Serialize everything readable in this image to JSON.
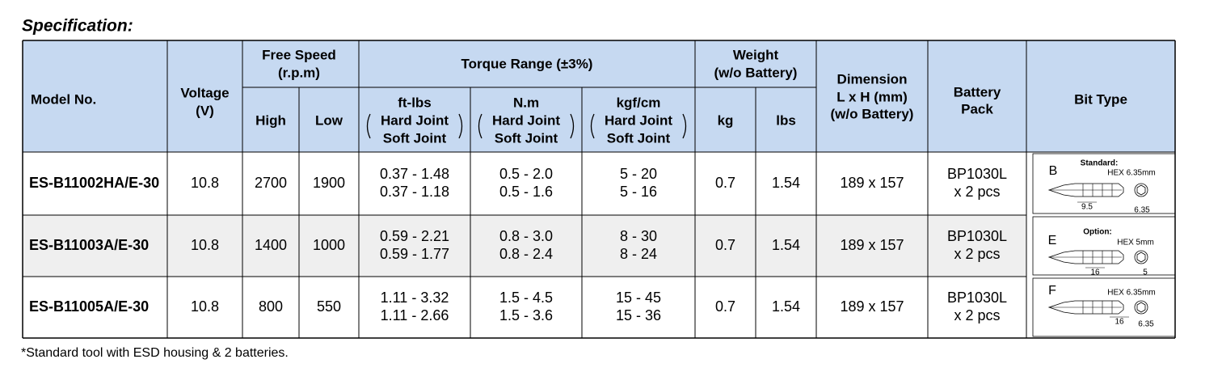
{
  "title": "Specification:",
  "table": {
    "header": {
      "model_no": "Model No.",
      "voltage": [
        "Voltage",
        "(V)"
      ],
      "free_speed": {
        "label": [
          "Free Speed",
          "(r.p.m)"
        ],
        "high": "High",
        "low": "Low"
      },
      "torque_range": {
        "label": "Torque Range (±3%)",
        "units": [
          {
            "unit": "ft-lbs",
            "lines": [
              "Hard Joint",
              "Soft Joint"
            ]
          },
          {
            "unit": "N.m",
            "lines": [
              "Hard Joint",
              "Soft Joint"
            ]
          },
          {
            "unit": "kgf/cm",
            "lines": [
              "Hard Joint",
              "Soft Joint"
            ]
          }
        ]
      },
      "weight": {
        "label": [
          "Weight",
          "(w/o Battery)"
        ],
        "kg": "kg",
        "lbs": "lbs"
      },
      "dimension": [
        "Dimension",
        "L x H (mm)",
        "(w/o Battery)"
      ],
      "battery_pack": [
        "Battery",
        "Pack"
      ],
      "bit_type": "Bit Type"
    },
    "rows": [
      {
        "model": "ES-B11002HA/E-30",
        "voltage": "10.8",
        "high": "2700",
        "low": "1900",
        "torque": [
          [
            "0.37 - 1.48",
            "0.37 - 1.18"
          ],
          [
            "0.5 - 2.0",
            "0.5 - 1.6"
          ],
          [
            "5 - 20",
            "5 - 16"
          ]
        ],
        "kg": "0.7",
        "lbs": "1.54",
        "dimension": "189 x 157",
        "battery": [
          "BP1030L",
          "x 2 pcs"
        ],
        "bit": {
          "letter": "B",
          "caption": "Standard:",
          "hex": "HEX 6.35mm",
          "length": "9.5",
          "width": "6.35"
        }
      },
      {
        "model": "ES-B11003A/E-30",
        "voltage": "10.8",
        "high": "1400",
        "low": "1000",
        "torque": [
          [
            "0.59 - 2.21",
            "0.59 - 1.77"
          ],
          [
            "0.8 - 3.0",
            "0.8 - 2.4"
          ],
          [
            "8 - 30",
            "8 - 24"
          ]
        ],
        "kg": "0.7",
        "lbs": "1.54",
        "dimension": "189 x 157",
        "battery": [
          "BP1030L",
          "x 2 pcs"
        ],
        "bit": {
          "letter": "E",
          "caption": "Option:",
          "hex": "HEX 5mm",
          "length": "16",
          "width": "5"
        }
      },
      {
        "model": "ES-B11005A/E-30",
        "voltage": "10.8",
        "high": "800",
        "low": "550",
        "torque": [
          [
            "1.11 - 3.32",
            "1.11 - 2.66"
          ],
          [
            "1.5 - 4.5",
            "1.5 - 3.6"
          ],
          [
            "15 - 45",
            "15 - 36"
          ]
        ],
        "kg": "0.7",
        "lbs": "1.54",
        "dimension": "189 x 157",
        "battery": [
          "BP1030L",
          "x 2 pcs"
        ],
        "bit": {
          "letter": "F",
          "hex": "HEX 6.35mm",
          "length": "16",
          "width": "6.35"
        }
      }
    ]
  },
  "footnote": "*Standard tool with ESD housing & 2 batteries."
}
